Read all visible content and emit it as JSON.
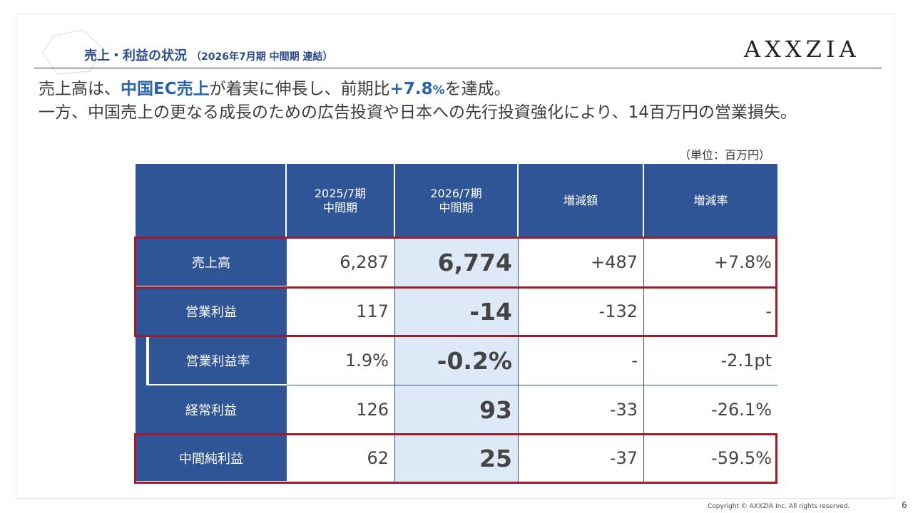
{
  "header": {
    "title": "売上・利益の状況",
    "subtitle": "（2026年7月期 中間期 連結）",
    "logo_text": "AXXZIA"
  },
  "lead": {
    "line1_pre": "売上高は、",
    "line1_hl": "中国EC売上",
    "line1_mid": "が着実に伸長し、前期比",
    "line1_rate": "+7.8",
    "line1_pct": "%",
    "line1_post": "を達成。",
    "line2": "一方、中国売上の更なる成長のための広告投資や日本への先行投資強化により、14百万円の営業損失。"
  },
  "unit_label": "（単位：百万円）",
  "table": {
    "columns": [
      {
        "line1": "2025/7期",
        "line2": "中間期"
      },
      {
        "line1": "2026/7期",
        "line2": "中間期"
      },
      {
        "line1": "増減額",
        "line2": ""
      },
      {
        "line1": "増減率",
        "line2": ""
      }
    ],
    "rows": [
      {
        "label": "売上高",
        "prev": "6,287",
        "curr": "6,774",
        "diff": "+487",
        "rate": "+7.8%"
      },
      {
        "label": "営業利益",
        "prev": "117",
        "curr": "-14",
        "diff": "-132",
        "rate": "-"
      },
      {
        "label": "営業利益率",
        "prev": "1.9%",
        "curr": "-0.2%",
        "diff": "-",
        "rate": "-2.1pt"
      },
      {
        "label": "経常利益",
        "prev": "126",
        "curr": "93",
        "diff": "-33",
        "rate": "-26.1%"
      },
      {
        "label": "中間純利益",
        "prev": "62",
        "curr": "25",
        "diff": "-37",
        "rate": "-59.5%"
      }
    ]
  },
  "footer": {
    "copyright": "Copyright © AXXZIA Inc. All rights reserved.",
    "page_number": "6"
  },
  "colors": {
    "primary": "#2f5597",
    "highlight_column": "#dde9f6",
    "emphasis_border": "#a11a2a",
    "title_blue": "#2a4c88"
  }
}
